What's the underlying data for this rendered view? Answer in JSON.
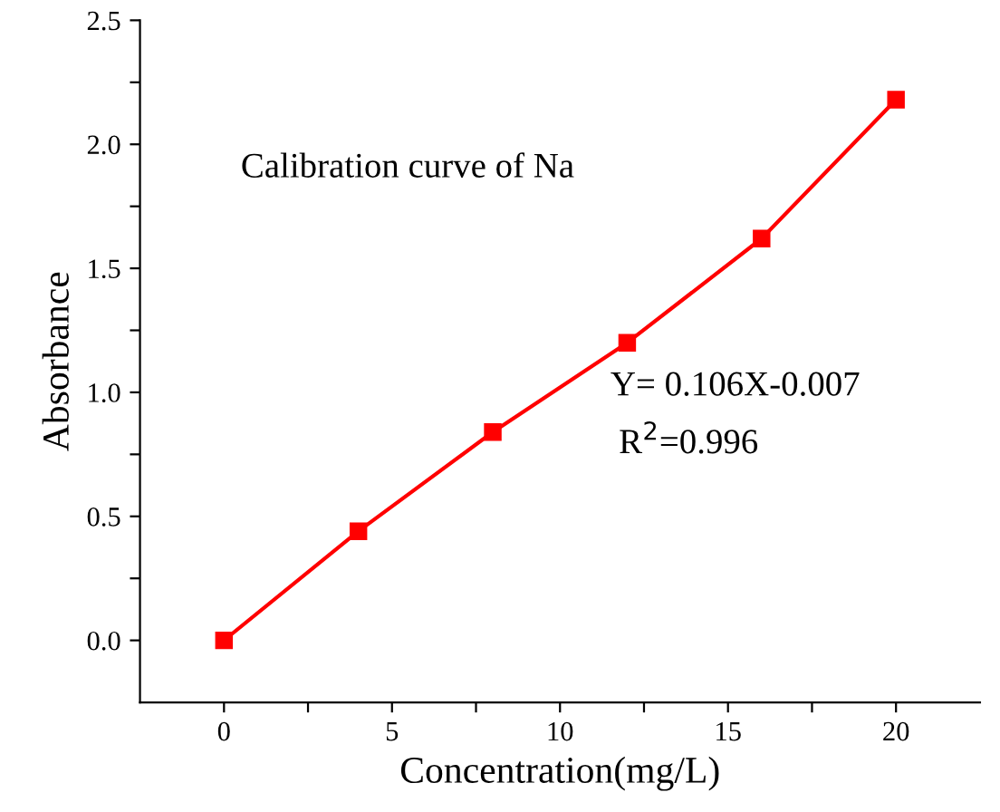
{
  "chart_data": {
    "type": "line",
    "xlabel": "Concentration(mg/L)",
    "ylabel": "Absorbance",
    "x": [
      0,
      4,
      8,
      12,
      16,
      20
    ],
    "series": [
      {
        "color": "#ff0000",
        "values": [
          0.0,
          0.44,
          0.84,
          1.2,
          1.62,
          2.18
        ]
      }
    ],
    "marker": "square",
    "line_style": "solid",
    "grid": false,
    "legend": false,
    "xlim": [
      -2.5,
      22.5
    ],
    "ylim": [
      -0.25,
      2.5
    ],
    "xticks": [
      0,
      {
        "value": 2.5,
        "label": null
      },
      5,
      {
        "value": 7.5,
        "label": null
      },
      10,
      {
        "value": 12.5,
        "label": null
      },
      15,
      {
        "value": 17.5,
        "label": null
      },
      20
    ],
    "yticks": [
      {
        "value": 0,
        "label": "0.0"
      },
      {
        "value": 0.25,
        "label": null
      },
      0.5,
      {
        "value": 0.75,
        "label": null
      },
      {
        "value": 1,
        "label": "1.0"
      },
      {
        "value": 1.25,
        "label": null
      },
      1.5,
      {
        "value": 1.75,
        "label": null
      },
      {
        "value": 2,
        "label": "2.0"
      },
      {
        "value": 2.25,
        "label": null
      },
      2.5
    ],
    "annotations": [
      "Calibration curve of Na",
      "Y= 0.106X-0.007",
      "R$^{2}$=0.996"
    ]
  }
}
